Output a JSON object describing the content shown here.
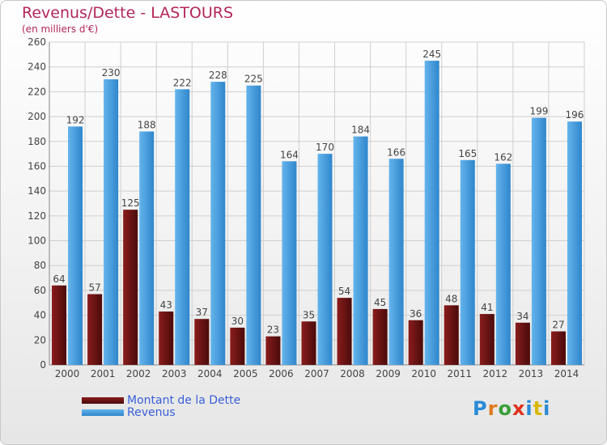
{
  "header": {
    "title": "Revenus/Dette - LASTOURS",
    "subtitle": "(en milliers d'€)"
  },
  "colors": {
    "title": "#b3265a",
    "axis_text": "#444444",
    "grid": "#cfcfcf",
    "debt_top": "#8a1c1c",
    "debt_bottom": "#4a0b0b",
    "revenue_top": "#64b4ec",
    "revenue_bottom": "#2f86cc",
    "legend_text": "#3a5fd8"
  },
  "legend": {
    "items": [
      {
        "label": "Montant de la Dette",
        "series": "debt"
      },
      {
        "label": "Revenus",
        "series": "revenue"
      }
    ]
  },
  "logo": {
    "text": "Proxiti",
    "letter_colors": [
      "#2a8ad6",
      "#e07b1c",
      "#3a9f3a",
      "#e0301c",
      "#2a8ad6",
      "#d8b800",
      "#2a8ad6"
    ]
  },
  "chart_data": {
    "type": "bar",
    "title": "Revenus/Dette - LASTOURS",
    "subtitle": "(en milliers d'€)",
    "xlabel": "",
    "ylabel": "",
    "ylim": [
      0,
      260
    ],
    "yticks": [
      0,
      20,
      40,
      60,
      80,
      100,
      120,
      140,
      160,
      180,
      200,
      220,
      240,
      260
    ],
    "grid": true,
    "legend_position": "bottom-left",
    "categories": [
      "2000",
      "2001",
      "2002",
      "2003",
      "2004",
      "2005",
      "2006",
      "2007",
      "2008",
      "2009",
      "2010",
      "2011",
      "2012",
      "2013",
      "2014"
    ],
    "series": [
      {
        "name": "Montant de la Dette",
        "values": [
          64,
          57,
          125,
          43,
          37,
          30,
          23,
          35,
          54,
          45,
          36,
          48,
          41,
          34,
          27
        ]
      },
      {
        "name": "Revenus",
        "values": [
          192,
          230,
          188,
          222,
          228,
          225,
          164,
          170,
          184,
          166,
          245,
          165,
          162,
          199,
          196
        ]
      }
    ]
  }
}
